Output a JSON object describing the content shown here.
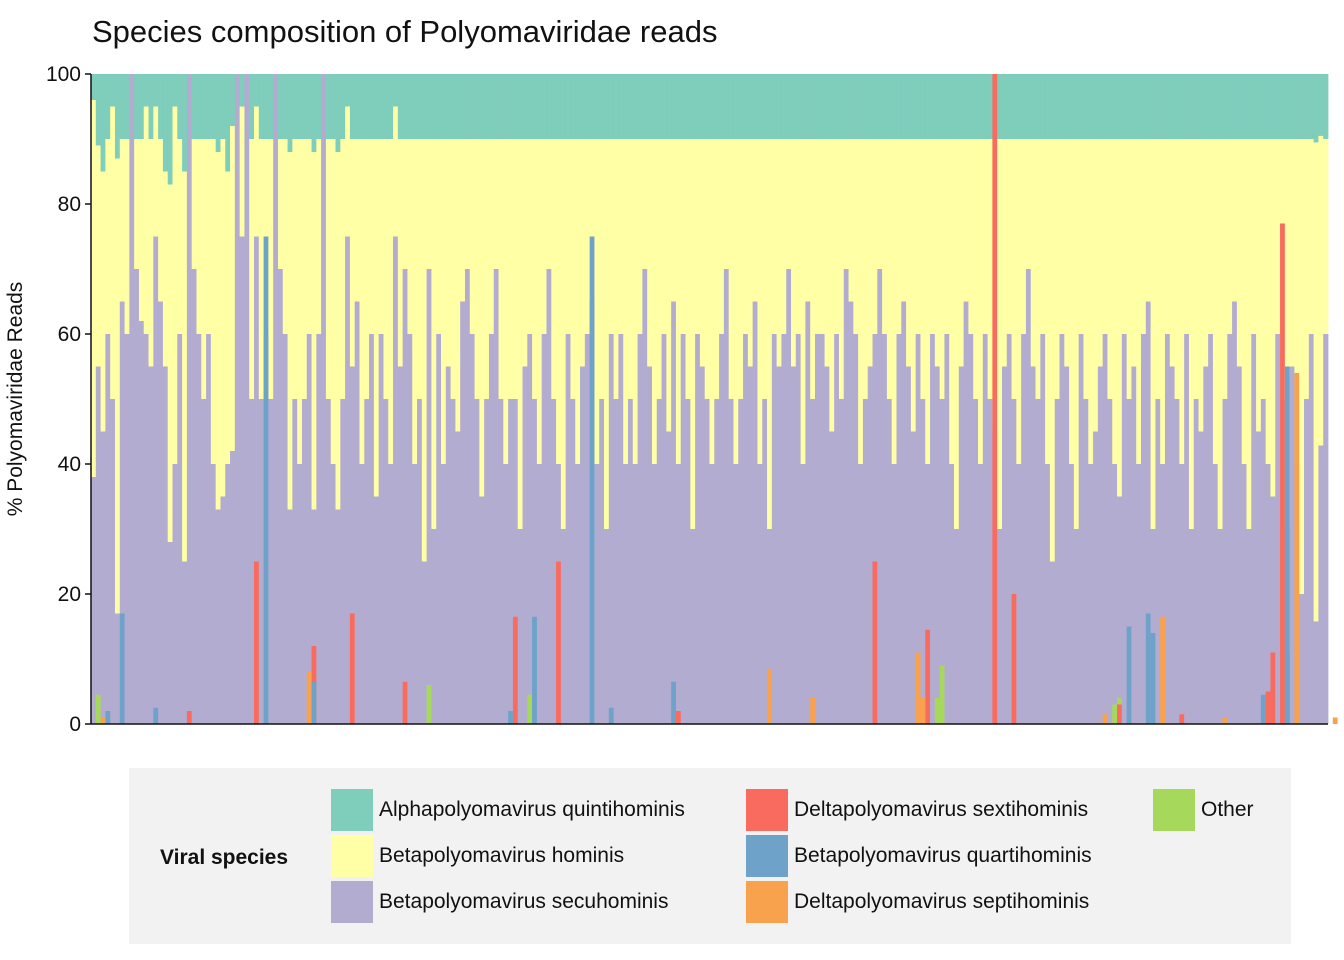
{
  "chart_data": {
    "type": "bar",
    "stacked": true,
    "title": "Species composition of Polyomaviridae reads",
    "xlabel": "",
    "ylabel": "% Polyomaviridae Reads",
    "ylim": [
      0,
      100
    ],
    "yticks": [
      0,
      20,
      40,
      60,
      80,
      100
    ],
    "grid": false,
    "legend": {
      "title": "Viral species",
      "position": "bottom",
      "entries": [
        {
          "name": "Alphapolyomavirus quintihominis",
          "color": "#7fcdbb"
        },
        {
          "name": "Betapolyomavirus hominis",
          "color": "#ffffa6"
        },
        {
          "name": "Betapolyomavirus secuhominis",
          "color": "#b3acd1"
        },
        {
          "name": "Deltapolyomavirus sextihominis",
          "color": "#f96b5e"
        },
        {
          "name": "Betapolyomavirus quartihominis",
          "color": "#6ea2c9"
        },
        {
          "name": "Deltapolyomavirus septihominis",
          "color": "#f9a24e"
        },
        {
          "name": "Other",
          "color": "#a6d95b"
        }
      ]
    },
    "samples_approx": 300,
    "stack_order_bottom_to_top": [
      "Betapolyomavirus secuhominis",
      "Betapolyomavirus hominis",
      "Alphapolyomavirus quintihominis"
    ],
    "series": [
      {
        "name": "Betapolyomavirus secuhominis",
        "values": [
          38,
          55,
          45,
          60,
          50,
          17,
          65,
          60,
          100,
          70,
          62,
          60,
          55,
          75,
          65,
          55,
          28,
          40,
          60,
          25,
          100,
          70,
          60,
          50,
          60,
          40,
          33,
          35,
          40,
          42,
          100,
          75,
          100,
          50,
          75,
          50,
          60,
          50,
          100,
          70,
          60,
          33,
          50,
          40,
          50,
          60,
          33,
          60,
          100,
          50,
          40,
          33,
          50,
          75,
          55,
          65,
          40,
          50,
          60,
          35,
          60,
          50,
          40,
          75,
          55,
          70,
          60,
          40,
          50,
          25,
          70,
          30,
          60,
          40,
          55,
          50,
          45,
          65,
          70,
          60,
          50,
          35,
          50,
          60,
          70,
          50,
          40,
          50,
          50,
          30,
          55,
          60,
          50,
          40,
          60,
          70,
          50,
          40,
          30,
          60,
          50,
          40,
          55,
          60,
          65,
          40,
          50,
          30,
          60,
          50,
          60,
          40,
          50,
          40,
          60,
          70,
          55,
          40,
          50,
          60,
          45,
          65,
          40,
          60,
          50,
          30,
          60,
          55,
          50,
          40,
          50,
          60,
          70,
          50,
          40,
          50,
          60,
          55,
          65,
          40,
          50,
          30,
          60,
          55,
          60,
          70,
          55,
          60,
          40,
          65,
          50,
          60,
          60,
          55,
          45,
          60,
          50,
          70,
          65,
          60,
          40,
          50,
          55,
          60,
          70,
          60,
          50,
          40,
          60,
          65,
          55,
          45,
          60,
          50,
          40,
          60,
          55,
          50,
          60,
          40,
          30,
          55,
          65,
          60,
          50,
          40,
          60,
          50,
          45,
          30,
          55,
          60,
          50,
          40,
          60,
          70,
          55,
          50,
          60,
          40,
          25,
          50,
          60,
          55,
          40,
          30,
          60,
          50,
          40,
          45,
          55,
          60,
          50,
          40,
          35,
          60,
          50,
          55,
          40,
          60,
          65,
          30,
          50,
          40,
          60,
          55,
          50,
          40,
          60,
          30,
          50,
          45,
          55,
          60,
          40,
          30,
          50,
          60,
          65,
          55,
          40,
          30,
          60,
          45,
          50,
          40,
          35,
          60,
          50,
          30,
          55,
          40,
          20,
          50,
          60,
          15,
          45,
          60
        ]
      },
      {
        "name": "Betapolyomavirus hominis",
        "values": [
          58,
          34,
          40,
          30,
          45,
          70,
          25,
          30,
          0,
          20,
          28,
          35,
          35,
          20,
          25,
          30,
          55,
          55,
          30,
          60,
          0,
          20,
          30,
          40,
          30,
          50,
          55,
          55,
          45,
          50,
          0,
          20,
          0,
          40,
          20,
          40,
          30,
          40,
          0,
          20,
          30,
          55,
          40,
          50,
          40,
          30,
          55,
          30,
          0,
          40,
          50,
          55,
          40,
          20,
          35,
          25,
          50,
          40,
          30,
          55,
          30,
          40,
          50,
          20,
          35,
          20,
          30,
          50,
          40,
          65,
          20,
          60,
          30,
          50,
          35,
          40,
          45,
          25,
          20,
          30,
          40,
          55,
          40,
          30,
          20,
          40,
          50,
          40,
          40,
          60,
          35,
          30,
          40,
          50,
          30,
          20,
          40,
          50,
          60,
          30,
          40,
          50,
          35,
          30,
          25,
          50,
          40,
          60,
          30,
          40,
          30,
          50,
          40,
          50,
          30,
          20,
          35,
          50,
          40,
          30,
          45,
          25,
          50,
          30,
          40,
          60,
          30,
          35,
          40,
          50,
          40,
          30,
          20,
          40,
          50,
          40,
          30,
          35,
          25,
          50,
          40,
          60,
          30,
          35,
          30,
          20,
          35,
          30,
          50,
          25,
          40,
          30,
          30,
          35,
          45,
          30,
          40,
          20,
          25,
          30,
          50,
          40,
          35,
          30,
          20,
          30,
          40,
          50,
          30,
          25,
          35,
          45,
          30,
          40,
          50,
          30,
          35,
          40,
          30,
          50,
          60,
          35,
          25,
          30,
          40,
          50,
          30,
          40,
          45,
          60,
          35,
          30,
          40,
          50,
          30,
          20,
          35,
          40,
          30,
          50,
          65,
          40,
          30,
          35,
          50,
          60,
          30,
          40,
          50,
          45,
          35,
          30,
          40,
          50,
          55,
          30,
          40,
          35,
          50,
          30,
          25,
          60,
          40,
          50,
          30,
          35,
          40,
          50,
          30,
          60,
          40,
          45,
          35,
          30,
          50,
          60,
          40,
          30,
          25,
          35,
          50,
          60,
          30,
          45,
          40,
          50,
          55,
          30,
          40,
          60,
          35,
          50,
          70,
          40,
          30,
          70,
          50,
          30
        ]
      },
      {
        "name": "Alphapolyomavirus quintihominis",
        "values": [
          4,
          11,
          15,
          10,
          5,
          13,
          10,
          10,
          0,
          10,
          10,
          5,
          10,
          5,
          10,
          15,
          17,
          5,
          10,
          15,
          0,
          10,
          10,
          10,
          10,
          10,
          12,
          10,
          15,
          8,
          0,
          5,
          0,
          10,
          5,
          10,
          10,
          10,
          0,
          10,
          10,
          12,
          10,
          10,
          10,
          10,
          12,
          10,
          0,
          10,
          10,
          12,
          10,
          5,
          10,
          10,
          10,
          10,
          10,
          10,
          10,
          10,
          10,
          5,
          10,
          10,
          10,
          10,
          10,
          10,
          10,
          10,
          10,
          10,
          10,
          10,
          10,
          10,
          10,
          10,
          10,
          10,
          10,
          10,
          10,
          10,
          10,
          10,
          10,
          10,
          10,
          10,
          10,
          10,
          10,
          10,
          10,
          10,
          10,
          10,
          10,
          10,
          10,
          10,
          10,
          10,
          10,
          10,
          10,
          10,
          10,
          10,
          10,
          10,
          10,
          10,
          10,
          10,
          10,
          10,
          10,
          10,
          10,
          10,
          10,
          10,
          10,
          10,
          10,
          10,
          10,
          10,
          10,
          10,
          10,
          10,
          10,
          10,
          10,
          10,
          10,
          10,
          10,
          10,
          10,
          10,
          10,
          10,
          10,
          10,
          10,
          10,
          10,
          10,
          10,
          10,
          10,
          10,
          10,
          10,
          10,
          10,
          10,
          10,
          10,
          10,
          10,
          10,
          10,
          10,
          10,
          10,
          10,
          10,
          10,
          10,
          10,
          10,
          10,
          10,
          10,
          10,
          10,
          10,
          10,
          10,
          10,
          10,
          10,
          10,
          10,
          10,
          10,
          10,
          10,
          10,
          10,
          10,
          10,
          10,
          10,
          10,
          10,
          10,
          10,
          10,
          10,
          10,
          10,
          10,
          10,
          10,
          10,
          10,
          10,
          10,
          10,
          10,
          10,
          10,
          10,
          10,
          10,
          10,
          10,
          10,
          10,
          10,
          10,
          10,
          10,
          10,
          10,
          10,
          10,
          10,
          10,
          10,
          10,
          10,
          10,
          10,
          10,
          10,
          10,
          10,
          10,
          10,
          10,
          10,
          10,
          10,
          10,
          10,
          10,
          10,
          10,
          10,
          10,
          15,
          5,
          10
        ]
      }
    ],
    "overlay_bars_approx": [
      {
        "name": "Other",
        "points": [
          [
            1,
            4.5
          ],
          [
            70,
            6
          ],
          [
            91,
            4.5
          ],
          [
            141,
            8
          ],
          [
            176,
            4
          ],
          [
            177,
            9
          ],
          [
            214,
            4
          ],
          [
            213,
            3
          ],
          [
            272,
            6
          ],
          [
            292,
            9
          ]
        ]
      },
      {
        "name": "Deltapolyomavirus sextihominis",
        "points": [
          [
            20,
            2
          ],
          [
            34,
            25
          ],
          [
            46,
            12
          ],
          [
            54,
            17
          ],
          [
            65,
            6.5
          ],
          [
            88,
            16.5
          ],
          [
            97,
            25
          ],
          [
            122,
            2
          ],
          [
            163,
            25
          ],
          [
            174,
            14.5
          ],
          [
            188,
            100
          ],
          [
            192,
            20
          ],
          [
            214,
            3
          ],
          [
            227,
            1.5
          ],
          [
            245,
            5
          ],
          [
            246,
            11
          ],
          [
            248,
            77
          ],
          [
            249,
            11
          ],
          [
            274,
            14.5
          ],
          [
            289,
            2
          ],
          [
            311,
            1
          ]
        ]
      },
      {
        "name": "Betapolyomavirus quartihominis",
        "points": [
          [
            3,
            2
          ],
          [
            6,
            17
          ],
          [
            13,
            2.5
          ],
          [
            36,
            75
          ],
          [
            46,
            6.5
          ],
          [
            87,
            2
          ],
          [
            92,
            16.5
          ],
          [
            104,
            75
          ],
          [
            108,
            2.5
          ],
          [
            121,
            6.5
          ],
          [
            216,
            15
          ],
          [
            220,
            17
          ],
          [
            221,
            14
          ],
          [
            244,
            4.5
          ],
          [
            249,
            55
          ],
          [
            265,
            7
          ],
          [
            278,
            9
          ],
          [
            285,
            14.5
          ]
        ]
      },
      {
        "name": "Deltapolyomavirus septihominis",
        "points": [
          [
            2,
            1
          ],
          [
            45,
            8
          ],
          [
            141,
            8.5
          ],
          [
            150,
            4
          ],
          [
            172,
            11
          ],
          [
            173,
            4
          ],
          [
            211,
            1.5
          ],
          [
            223,
            16.5
          ],
          [
            236,
            1
          ],
          [
            251,
            54
          ],
          [
            259,
            1
          ],
          [
            301,
            3
          ]
        ]
      }
    ]
  }
}
